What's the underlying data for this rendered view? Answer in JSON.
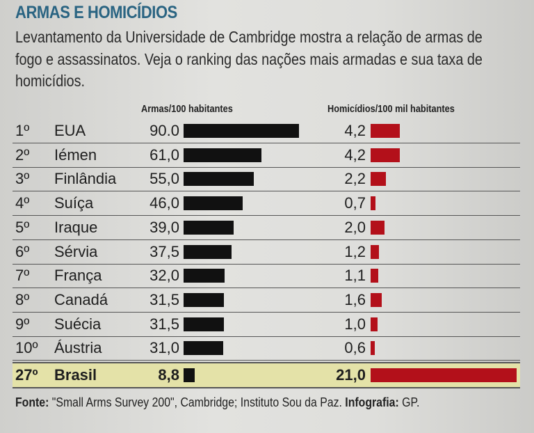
{
  "title": "ARMAS E HOMICÍDIOS",
  "description": "Levantamento da Universidade de Cambridge mostra a relação de armas de fogo e assassinatos. Veja o ranking das nações mais armadas e sua taxa de homicídios.",
  "colors": {
    "title": "#2a6482",
    "guns_bar": "#111111",
    "homicide_bar": "#b3101a",
    "highlight": "#e4e2a8"
  },
  "chart_data": {
    "type": "bar",
    "series": [
      {
        "name": "Armas/100 habitantes",
        "values": [
          90.0,
          61.0,
          55.0,
          46.0,
          39.0,
          37.5,
          32.0,
          31.5,
          31.5,
          31.0,
          8.8
        ]
      },
      {
        "name": "Homicídios/100 mil habitantes",
        "values": [
          4.2,
          4.2,
          2.2,
          0.7,
          2.0,
          1.2,
          1.1,
          1.6,
          1.0,
          0.6,
          21.0
        ]
      }
    ],
    "rows": [
      {
        "rank": "1º",
        "country": "EUA",
        "guns": "90.0",
        "homicides": "4,2"
      },
      {
        "rank": "2º",
        "country": "Iémen",
        "guns": "61,0",
        "homicides": "4,2"
      },
      {
        "rank": "3º",
        "country": "Finlândia",
        "guns": "55,0",
        "homicides": "2,2"
      },
      {
        "rank": "4º",
        "country": "Suíça",
        "guns": "46,0",
        "homicides": "0,7"
      },
      {
        "rank": "5º",
        "country": "Iraque",
        "guns": "39,0",
        "homicides": "2,0"
      },
      {
        "rank": "6º",
        "country": "Sérvia",
        "guns": "37,5",
        "homicides": "1,2"
      },
      {
        "rank": "7º",
        "country": "França",
        "guns": "32,0",
        "homicides": "1,1"
      },
      {
        "rank": "8º",
        "country": "Canadá",
        "guns": "31,5",
        "homicides": "1,6"
      },
      {
        "rank": "9º",
        "country": "Suécia",
        "guns": "31,5",
        "homicides": "1,0"
      },
      {
        "rank": "10º",
        "country": "Áustria",
        "guns": "31,0",
        "homicides": "0,6"
      },
      {
        "rank": "27º",
        "country": "Brasil",
        "guns": "8,8",
        "homicides": "21,0",
        "highlight": true
      }
    ]
  },
  "footer": {
    "source_label": "Fonte:",
    "source_text": " \"Small Arms Survey 200\", Cambridge; Instituto Sou da Paz. ",
    "credit_label": "Infografia:",
    "credit_text": " GP."
  }
}
